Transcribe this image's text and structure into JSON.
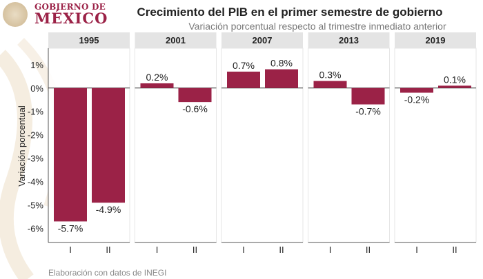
{
  "header": {
    "logo_line1": "GOBIERNO DE",
    "logo_line2": "MÉXICO"
  },
  "chart_data": {
    "type": "bar",
    "title": "Crecimiento del PIB en el primer semestre de gobierno",
    "subtitle": "Variación porcentual respecto al trimestre inmediato anterior",
    "ylabel": "Variación porcentual",
    "xlabel": "",
    "ylim": [
      -6.6,
      1.7
    ],
    "yticks": [
      1,
      0,
      -1,
      -2,
      -3,
      -4,
      -5,
      -6
    ],
    "ytick_labels": [
      "1%",
      "0%",
      "-1%",
      "-2%",
      "-3%",
      "-4%",
      "-5%",
      "-6%"
    ],
    "categories": [
      "I",
      "II"
    ],
    "bar_color": "#9b2247",
    "grid": false,
    "facets": [
      {
        "label": "1995",
        "values": [
          -5.7,
          -4.9
        ],
        "data_labels": [
          "-5.7%",
          "-4.9%"
        ]
      },
      {
        "label": "2001",
        "values": [
          0.2,
          -0.6
        ],
        "data_labels": [
          "0.2%",
          "-0.6%"
        ]
      },
      {
        "label": "2007",
        "values": [
          0.7,
          0.8
        ],
        "data_labels": [
          "0.7%",
          "0.8%"
        ]
      },
      {
        "label": "2013",
        "values": [
          0.3,
          -0.7
        ],
        "data_labels": [
          "0.3%",
          "-0.7%"
        ]
      },
      {
        "label": "2019",
        "values": [
          -0.2,
          0.1
        ],
        "data_labels": [
          "-0.2%",
          "0.1%"
        ]
      }
    ],
    "caption": "Elaboración con datos de INEGI"
  }
}
